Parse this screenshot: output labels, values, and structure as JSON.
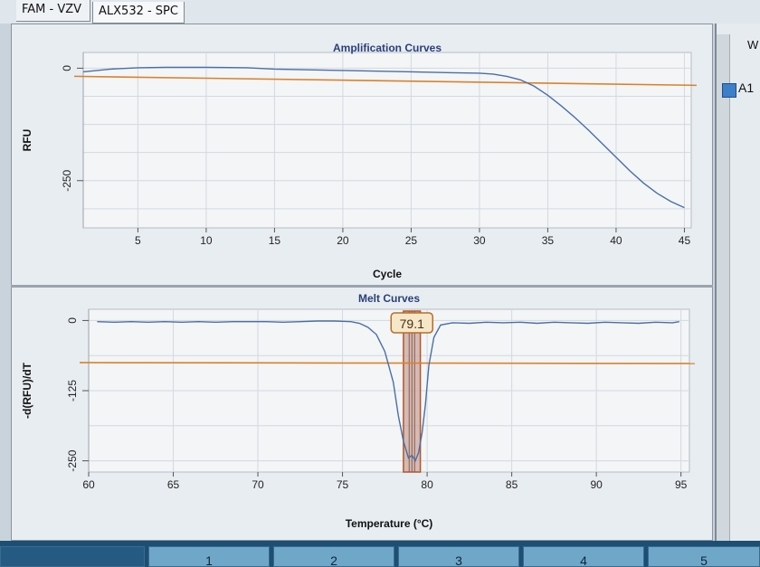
{
  "tabs": [
    {
      "label": "FAM - VZV"
    },
    {
      "label": "ALX532 - SPC"
    }
  ],
  "side_panel": {
    "header": "W",
    "items": [
      {
        "label": "A1",
        "color": "#3d7fc8"
      }
    ]
  },
  "bottom_buttons": [
    "",
    "1",
    "2",
    "3",
    "4",
    "5"
  ],
  "chart_data": [
    {
      "type": "line",
      "title": "Amplification Curves",
      "xlabel": "Cycle",
      "ylabel": "RFU",
      "xlim": [
        1,
        45.5
      ],
      "ylim": [
        -355,
        35
      ],
      "xticks": [
        5,
        10,
        15,
        20,
        25,
        30,
        35,
        40,
        45
      ],
      "yticks": [
        0,
        -250
      ],
      "grid": true,
      "series": [
        {
          "color": "#4a6fa5",
          "x": [
            1,
            3,
            5,
            7,
            10,
            13,
            15,
            20,
            25,
            28,
            30,
            31,
            32,
            33,
            34,
            35,
            36,
            37,
            38,
            39,
            40,
            41,
            42,
            43,
            44,
            45
          ],
          "y": [
            -8,
            -2,
            1,
            2,
            2,
            1,
            -2,
            -5,
            -8,
            -10,
            -11,
            -13,
            -18,
            -26,
            -40,
            -60,
            -84,
            -110,
            -138,
            -168,
            -198,
            -228,
            -255,
            -278,
            -296,
            -310
          ]
        }
      ],
      "threshold": {
        "y": -18,
        "color": "#d9822b"
      }
    },
    {
      "type": "line",
      "title": "Melt Curves",
      "xlabel": "Temperature (°C)",
      "ylabel": "-d(RFU)/dT",
      "xlim": [
        60,
        95.5
      ],
      "ylim": [
        -270,
        20
      ],
      "xticks": [
        60,
        65,
        70,
        75,
        80,
        85,
        90,
        95
      ],
      "yticks": [
        0,
        -125,
        -250
      ],
      "grid": true,
      "series": [
        {
          "color": "#4a6fa5",
          "x": [
            60.5,
            61.5,
            62.5,
            63.5,
            64.5,
            65.5,
            66.5,
            67.5,
            68.5,
            69.5,
            70.5,
            71.5,
            72.5,
            73.5,
            74.5,
            75.5,
            76,
            76.5,
            77,
            77.5,
            78,
            78.3,
            78.6,
            78.9,
            79.1,
            79.3,
            79.5,
            79.7,
            79.9,
            80.1,
            80.4,
            80.8,
            81.5,
            82.5,
            83.5,
            84.5,
            85.5,
            86.5,
            87.5,
            88.5,
            89.5,
            90.5,
            91.5,
            92.5,
            93.5,
            94.5,
            94.9
          ],
          "y": [
            -2,
            -3,
            -2,
            -3,
            -2,
            -3,
            -2,
            -3,
            -2,
            -2,
            -2,
            -3,
            -2,
            -1,
            -1,
            -2,
            -5,
            -12,
            -25,
            -55,
            -110,
            -170,
            -215,
            -245,
            -240,
            -250,
            -235,
            -200,
            -150,
            -80,
            -30,
            -8,
            -4,
            -5,
            -3,
            -4,
            -3,
            -5,
            -3,
            -4,
            -5,
            -3,
            -4,
            -5,
            -3,
            -4,
            -2
          ]
        }
      ],
      "threshold": {
        "y": -75,
        "color": "#d9822b"
      },
      "peak_marker": {
        "label": "79.1",
        "x": 79.1,
        "range": [
          78.6,
          79.6
        ]
      }
    }
  ]
}
